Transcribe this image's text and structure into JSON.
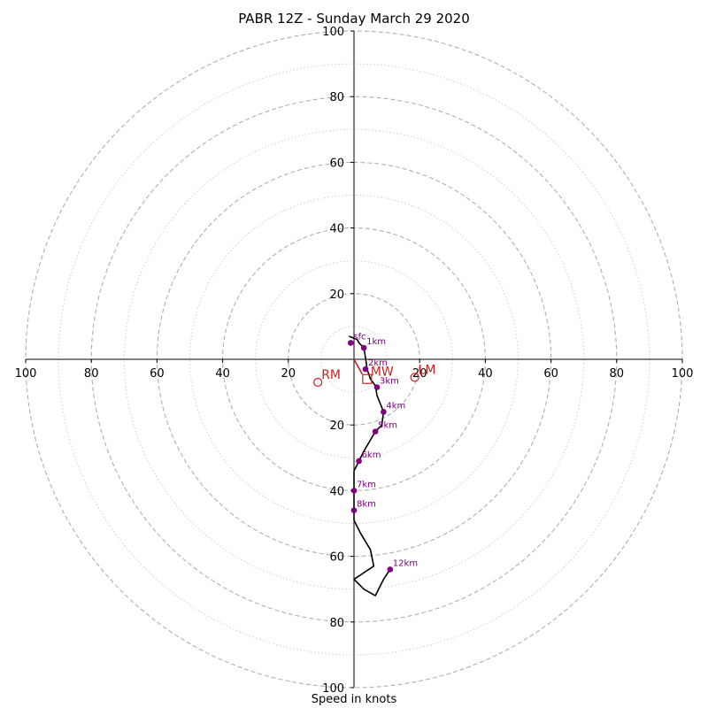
{
  "chart_data": {
    "type": "scatter",
    "title": "PABR 12Z - Sunday March 29 2020",
    "xlabel": "Speed in knots",
    "ylabel": "",
    "range": 100,
    "ring_major": [
      20,
      40,
      60,
      80,
      100
    ],
    "ring_minor": [
      10,
      30,
      50,
      70,
      90
    ],
    "tick_labels": [
      "20",
      "40",
      "60",
      "80",
      "100"
    ],
    "hodograph_line": [
      [
        -1.5,
        7
      ],
      [
        1,
        6
      ],
      [
        1.5,
        5
      ],
      [
        3,
        3.5
      ],
      [
        3.5,
        0.5
      ],
      [
        4,
        -3
      ],
      [
        5,
        -6
      ],
      [
        6.5,
        -8
      ],
      [
        7,
        -11
      ],
      [
        9,
        -16
      ],
      [
        8.5,
        -20
      ],
      [
        6.5,
        -22
      ],
      [
        3,
        -28
      ],
      [
        1.5,
        -31
      ],
      [
        0,
        -34
      ],
      [
        0,
        -40
      ],
      [
        0,
        -46
      ],
      [
        0,
        -49
      ],
      [
        2,
        -53
      ],
      [
        5,
        -58
      ],
      [
        6,
        -63
      ],
      [
        0,
        -67
      ],
      [
        3,
        -70
      ],
      [
        6.5,
        -72
      ],
      [
        9,
        -67
      ],
      [
        11,
        -64
      ]
    ],
    "height_points": [
      {
        "label": "sfc",
        "x": -1,
        "y": 5
      },
      {
        "label": "1km",
        "x": 3,
        "y": 3.5
      },
      {
        "label": "2km",
        "x": 3.5,
        "y": -3
      },
      {
        "label": "3km",
        "x": 7,
        "y": -8.5
      },
      {
        "label": "4km",
        "x": 9,
        "y": -16
      },
      {
        "label": "5km",
        "x": 6.5,
        "y": -22
      },
      {
        "label": "6km",
        "x": 1.5,
        "y": -31
      },
      {
        "label": "7km",
        "x": 0,
        "y": -40
      },
      {
        "label": "8km",
        "x": 0,
        "y": -46
      },
      {
        "label": "12km",
        "x": 11,
        "y": -64
      }
    ],
    "storm_motion_vector": [
      [
        0,
        0
      ],
      [
        2.5,
        -4.5
      ]
    ],
    "markers": [
      {
        "label": "RM",
        "x": -11,
        "y": -7,
        "shape": "circle"
      },
      {
        "label": "LM",
        "x": 18.5,
        "y": -5.5,
        "shape": "circle"
      },
      {
        "label": "MW",
        "x": 4,
        "y": -6,
        "shape": "square"
      }
    ],
    "colors": {
      "hodograph": "#000000",
      "height_points": "#800080",
      "markers": "#cc2222",
      "grid": "#b0b0b0"
    },
    "grid": true
  }
}
